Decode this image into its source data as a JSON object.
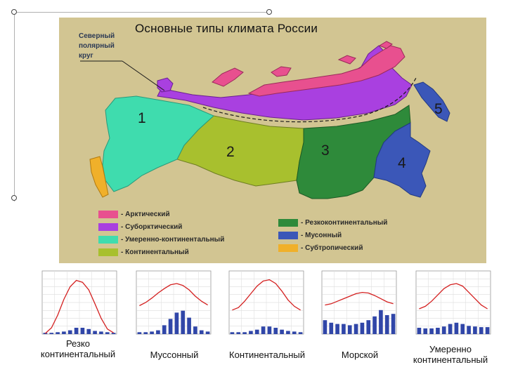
{
  "map": {
    "title": "Основные типы климата России",
    "arctic_circle_label": [
      "Северный",
      "полярный",
      "круг"
    ],
    "zone_numbers": [
      "1",
      "2",
      "3",
      "4",
      "5"
    ]
  },
  "legend": {
    "left": [
      {
        "color": "#e8508f",
        "label": "- Арктический"
      },
      {
        "color": "#a940e0",
        "label": "- Суборктический"
      },
      {
        "color": "#3fdcae",
        "label": "- Умеренно-континентальный"
      },
      {
        "color": "#a8c02e",
        "label": "- Континентальный"
      }
    ],
    "right": [
      {
        "color": "#2e8a3a",
        "label": "- Резкоконтинентальный"
      },
      {
        "color": "#3b57b8",
        "label": "- Мусонный"
      },
      {
        "color": "#f0b02a",
        "label": "- Субтропический"
      }
    ]
  },
  "climate_charts": [
    {
      "caption": [
        "Резко",
        "континентальный"
      ],
      "temperature": [
        1,
        10,
        30,
        55,
        75,
        85,
        82,
        70,
        48,
        25,
        8,
        2
      ],
      "precipitation": [
        2,
        2,
        3,
        4,
        6,
        10,
        10,
        8,
        5,
        4,
        3,
        2
      ]
    },
    {
      "caption": [
        "Муссонный"
      ],
      "temperature": [
        45,
        50,
        57,
        65,
        72,
        78,
        80,
        77,
        70,
        60,
        52,
        46
      ],
      "precipitation": [
        3,
        3,
        4,
        6,
        14,
        24,
        34,
        37,
        26,
        12,
        6,
        4
      ]
    },
    {
      "caption": [
        "Континентальный"
      ],
      "temperature": [
        38,
        42,
        52,
        64,
        76,
        84,
        86,
        80,
        68,
        54,
        44,
        38
      ],
      "precipitation": [
        3,
        3,
        3,
        5,
        7,
        12,
        12,
        10,
        7,
        5,
        4,
        3
      ]
    },
    {
      "caption": [
        "Морской"
      ],
      "temperature": [
        46,
        48,
        52,
        56,
        60,
        64,
        66,
        65,
        61,
        56,
        51,
        48
      ],
      "precipitation": [
        22,
        18,
        16,
        16,
        14,
        16,
        18,
        22,
        28,
        38,
        30,
        32
      ]
    },
    {
      "caption": [
        "Умеренно",
        "континентальный"
      ],
      "temperature": [
        40,
        44,
        52,
        62,
        72,
        78,
        80,
        76,
        66,
        56,
        46,
        40
      ],
      "precipitation": [
        10,
        9,
        9,
        10,
        12,
        16,
        18,
        16,
        13,
        12,
        11,
        11
      ]
    }
  ]
}
